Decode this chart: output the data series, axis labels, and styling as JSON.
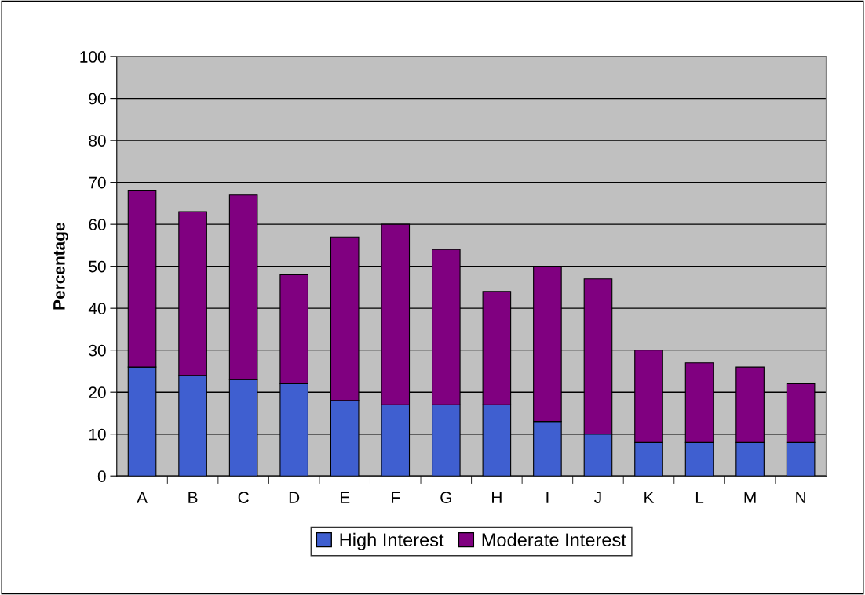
{
  "chart_data": {
    "type": "bar",
    "stacked": true,
    "ylabel": "Percentage",
    "categories": [
      "A",
      "B",
      "C",
      "D",
      "E",
      "F",
      "G",
      "H",
      "I",
      "J",
      "K",
      "L",
      "M",
      "N"
    ],
    "series": [
      {
        "name": "High Interest",
        "color": "#3f5fd0",
        "values": [
          26,
          24,
          23,
          22,
          18,
          17,
          17,
          17,
          13,
          10,
          8,
          8,
          8,
          8
        ]
      },
      {
        "name": "Moderate Interest",
        "color": "#800080",
        "values": [
          42,
          39,
          44,
          26,
          39,
          43,
          37,
          27,
          37,
          37,
          22,
          19,
          18,
          14
        ]
      }
    ],
    "ylim": [
      0,
      100
    ],
    "yticks": [
      0,
      10,
      20,
      30,
      40,
      50,
      60,
      70,
      80,
      90,
      100
    ],
    "grid": "y",
    "legend": "bottom"
  }
}
